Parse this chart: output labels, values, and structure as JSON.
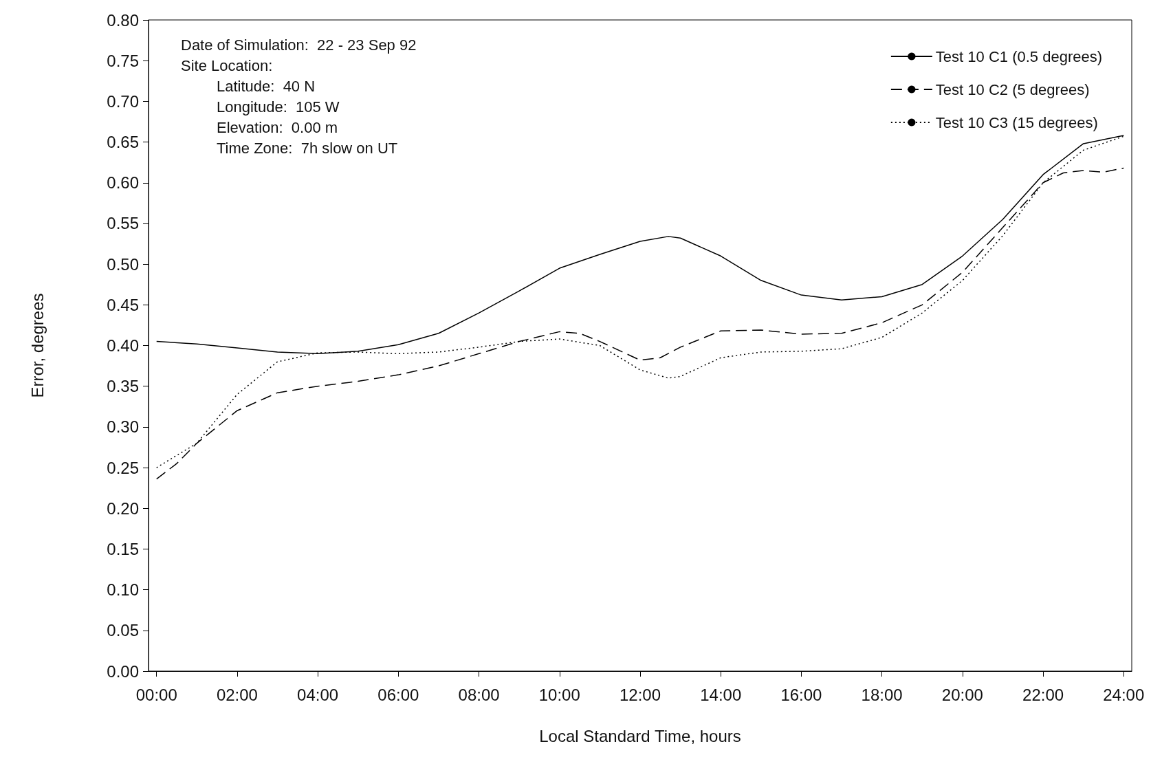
{
  "chart_data": {
    "type": "line",
    "xlabel": "Local Standard Time, hours",
    "ylabel": "Error, degrees",
    "annotations": [
      "Date of Simulation:  22 - 23 Sep 92",
      "Site Location:",
      "Latitude:  40 N",
      "Longitude:  105 W",
      "Elevation:  0.00 m",
      "Time Zone:  7h slow on UT"
    ],
    "xlim": [
      -0.2,
      24.2
    ],
    "xticks": [
      {
        "value": 0,
        "label": "00:00"
      },
      {
        "value": 2,
        "label": "02:00"
      },
      {
        "value": 4,
        "label": "04:00"
      },
      {
        "value": 6,
        "label": "06:00"
      },
      {
        "value": 8,
        "label": "08:00"
      },
      {
        "value": 10,
        "label": "10:00"
      },
      {
        "value": 12,
        "label": "12:00"
      },
      {
        "value": 14,
        "label": "14:00"
      },
      {
        "value": 16,
        "label": "16:00"
      },
      {
        "value": 18,
        "label": "18:00"
      },
      {
        "value": 20,
        "label": "20:00"
      },
      {
        "value": 22,
        "label": "22:00"
      },
      {
        "value": 24,
        "label": "24:00"
      }
    ],
    "ylim": [
      0,
      0.8
    ],
    "yticks": [
      {
        "value": 0,
        "label": "0.00"
      },
      {
        "value": 0.05,
        "label": "0.05"
      },
      {
        "value": 0.1,
        "label": "0.10"
      },
      {
        "value": 0.15,
        "label": "0.15"
      },
      {
        "value": 0.2,
        "label": "0.20"
      },
      {
        "value": 0.25,
        "label": "0.25"
      },
      {
        "value": 0.3,
        "label": "0.30"
      },
      {
        "value": 0.35,
        "label": "0.35"
      },
      {
        "value": 0.4,
        "label": "0.40"
      },
      {
        "value": 0.45,
        "label": "0.45"
      },
      {
        "value": 0.5,
        "label": "0.50"
      },
      {
        "value": 0.55,
        "label": "0.55"
      },
      {
        "value": 0.6,
        "label": "0.60"
      },
      {
        "value": 0.65,
        "label": "0.65"
      },
      {
        "value": 0.7,
        "label": "0.70"
      },
      {
        "value": 0.75,
        "label": "0.75"
      },
      {
        "value": 0.8,
        "label": "0.80"
      }
    ],
    "grid": false,
    "legend": "top right",
    "marker": "none",
    "series": [
      {
        "name": "Test 10 C1 (0.5 degrees)",
        "color": "#000000",
        "line_style": "solid",
        "x": [
          0,
          1,
          2,
          3,
          4,
          5,
          6,
          7,
          8,
          9,
          10,
          11,
          12,
          12.7,
          13,
          14,
          15,
          16,
          17,
          18,
          19,
          20,
          21,
          22,
          23,
          24
        ],
        "values": [
          0.405,
          0.402,
          0.397,
          0.392,
          0.39,
          0.393,
          0.401,
          0.415,
          0.44,
          0.467,
          0.495,
          0.512,
          0.528,
          0.534,
          0.532,
          0.51,
          0.48,
          0.462,
          0.456,
          0.46,
          0.475,
          0.51,
          0.555,
          0.61,
          0.648,
          0.658
        ]
      },
      {
        "name": "Test 10 C2 (5 degrees)",
        "color": "#000000",
        "line_style": "dashed",
        "x": [
          0,
          0.5,
          1,
          2,
          3,
          4,
          5,
          6,
          7,
          8,
          9,
          10,
          10.5,
          11,
          12,
          12.5,
          13,
          14,
          15,
          16,
          17,
          18,
          19,
          20,
          21,
          22,
          22.5,
          23,
          23.5,
          24
        ],
        "values": [
          0.236,
          0.255,
          0.28,
          0.32,
          0.342,
          0.35,
          0.356,
          0.364,
          0.375,
          0.39,
          0.405,
          0.417,
          0.415,
          0.405,
          0.382,
          0.385,
          0.398,
          0.418,
          0.419,
          0.414,
          0.415,
          0.428,
          0.45,
          0.49,
          0.545,
          0.6,
          0.612,
          0.615,
          0.613,
          0.618
        ]
      },
      {
        "name": "Test 10 C3 (15 degrees)",
        "color": "#000000",
        "line_style": "dotted",
        "x": [
          0,
          1,
          2,
          3,
          4,
          5,
          6,
          7,
          8,
          9,
          10,
          11,
          12,
          12.7,
          13,
          14,
          15,
          16,
          17,
          18,
          19,
          20,
          21,
          22,
          23,
          24
        ],
        "values": [
          0.25,
          0.28,
          0.34,
          0.38,
          0.391,
          0.392,
          0.39,
          0.392,
          0.398,
          0.405,
          0.408,
          0.4,
          0.37,
          0.36,
          0.362,
          0.385,
          0.392,
          0.393,
          0.396,
          0.41,
          0.44,
          0.48,
          0.535,
          0.6,
          0.64,
          0.657
        ]
      }
    ]
  }
}
